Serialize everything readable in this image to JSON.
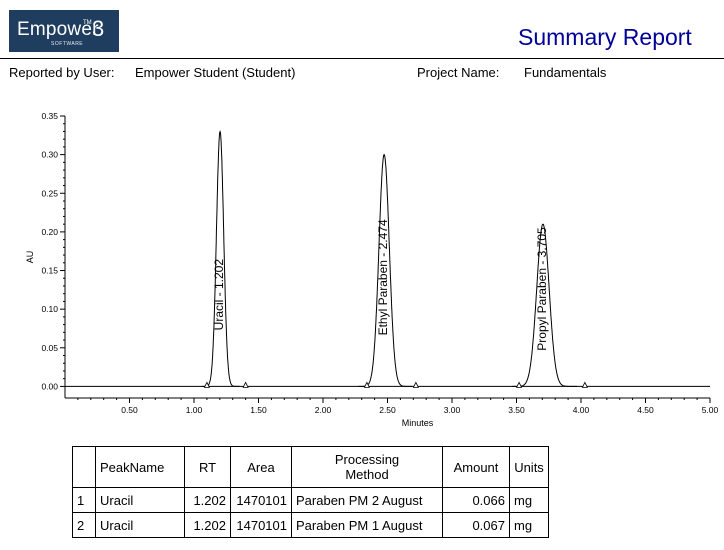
{
  "header": {
    "logo": {
      "name": "Empower",
      "tm": "TM",
      "version": "3",
      "sub": "SOFTWARE"
    },
    "title": "Summary Report",
    "reported_by_label": "Reported by User:",
    "reported_by_value": "Empower Student (Student)",
    "project_label": "Project Name:",
    "project_value": "Fundamentals"
  },
  "chart_data": {
    "type": "line",
    "xlabel": "Minutes",
    "ylabel": "AU",
    "xlim": [
      0,
      5.0
    ],
    "ylim": [
      -0.015,
      0.35
    ],
    "x_ticks": [
      "0.50",
      "1.00",
      "1.50",
      "2.00",
      "2.50",
      "3.00",
      "3.50",
      "4.00",
      "4.50",
      "5.00"
    ],
    "y_ticks": [
      "0.00",
      "0.05",
      "0.10",
      "0.15",
      "0.20",
      "0.25",
      "0.30",
      "0.35"
    ],
    "peaks": [
      {
        "label": "Uracil - 1.202",
        "rt": 1.202,
        "height": 0.33,
        "width": 0.028,
        "start": 1.1,
        "end": 1.4
      },
      {
        "label": "Ethyl Paraben - 2.474",
        "rt": 2.474,
        "height": 0.3,
        "width": 0.04,
        "start": 2.34,
        "end": 2.72
      },
      {
        "label": "Propyl Paraben - 3.705",
        "rt": 3.705,
        "height": 0.21,
        "width": 0.048,
        "start": 3.52,
        "end": 4.03
      }
    ]
  },
  "results_table": {
    "headers": [
      "",
      "PeakName",
      "RT",
      "Area",
      "Processing Method",
      "Amount",
      "Units"
    ],
    "rows": [
      [
        "1",
        "Uracil",
        "1.202",
        "1470101",
        "Paraben PM 2 August",
        "0.066",
        "mg"
      ],
      [
        "2",
        "Uracil",
        "1.202",
        "1470101",
        "Paraben PM 1 August",
        "0.067",
        "mg"
      ]
    ]
  }
}
